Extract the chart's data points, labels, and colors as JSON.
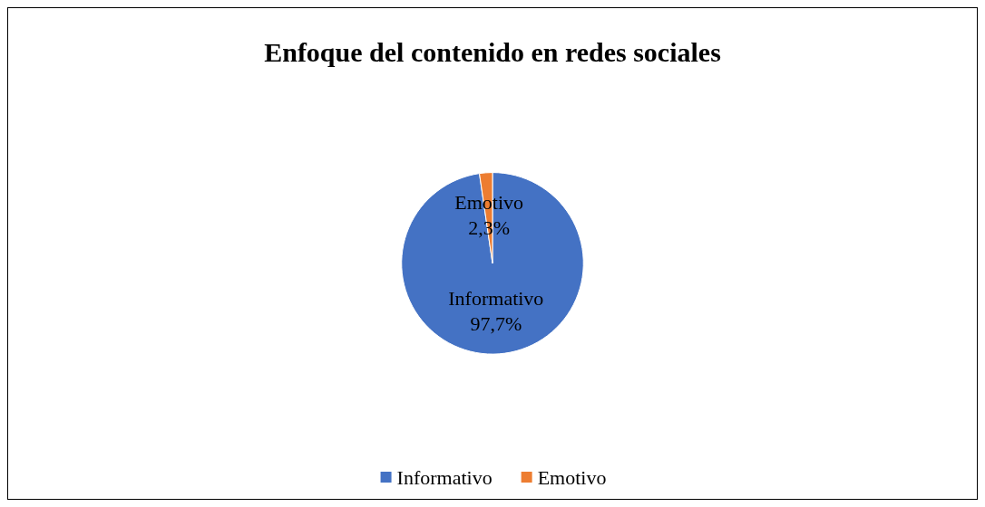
{
  "chart_data": {
    "type": "pie",
    "title": "Enfoque del contenido en redes sociales",
    "categories": [
      "Informativo",
      "Emotivo"
    ],
    "values": [
      97.7,
      2.3
    ],
    "colors": [
      "#4472c4",
      "#ed7d31"
    ],
    "value_labels": [
      "97,7%",
      "2,3%"
    ],
    "legend": "bottom"
  }
}
